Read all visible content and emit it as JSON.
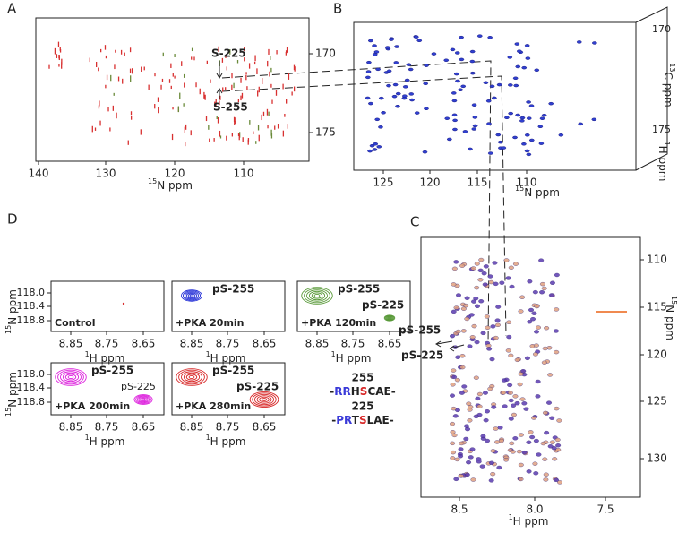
{
  "panels": {
    "A": {
      "label": "A",
      "xticks": [
        "140",
        "130",
        "120",
        "110"
      ],
      "yticks": [
        "170",
        "175"
      ],
      "xlabel": {
        "sup": "15",
        "text": "N ppm"
      },
      "annotations": [
        "S-225",
        "S-255"
      ]
    },
    "B": {
      "label": "B",
      "xticks": [
        "125",
        "120",
        "115",
        "110"
      ],
      "side_ticks": [
        "170",
        "175"
      ],
      "xlabel": {
        "sup": "15",
        "text": "N ppm"
      },
      "side_label": {
        "sup": "13",
        "text": "C ppm"
      },
      "depth_label": {
        "sup": "1",
        "text": "H ppm"
      }
    },
    "C": {
      "label": "C",
      "xticks": [
        "8.5",
        "8.0",
        "7.5"
      ],
      "yticks": [
        "110",
        "115",
        "120",
        "125",
        "130"
      ],
      "xlabel": {
        "sup": "1",
        "text": "H ppm"
      },
      "ylabel": {
        "sup": "15",
        "text": "N ppm"
      },
      "annotations": [
        "pS-255",
        "pS-225"
      ]
    },
    "D": {
      "label": "D",
      "xticks": [
        "8.85",
        "8.75",
        "8.65"
      ],
      "yticks": [
        "118.0",
        "118.4",
        "118.8"
      ],
      "xlabel": {
        "sup": "1",
        "text": "H ppm"
      },
      "ylabel": {
        "sup": "15",
        "text": "N ppm"
      },
      "plots": [
        {
          "condition": "Control"
        },
        {
          "condition": "+PKA 20min",
          "peaks": [
            "pS-255"
          ]
        },
        {
          "condition": "+PKA 120min",
          "peaks": [
            "pS-255",
            "pS-225"
          ]
        },
        {
          "condition": "+PKA 200min",
          "peaks": [
            "pS-255",
            "pS-225"
          ]
        },
        {
          "condition": "+PKA 280min",
          "peaks": [
            "pS-255",
            "pS-225"
          ]
        }
      ],
      "sequences": [
        {
          "number": "255",
          "segments": [
            "-",
            "RR",
            "H",
            "S",
            "CAE-"
          ]
        },
        {
          "number": "225",
          "segments": [
            "-",
            "PR",
            "T",
            "S",
            "LAE-"
          ]
        }
      ]
    }
  }
}
